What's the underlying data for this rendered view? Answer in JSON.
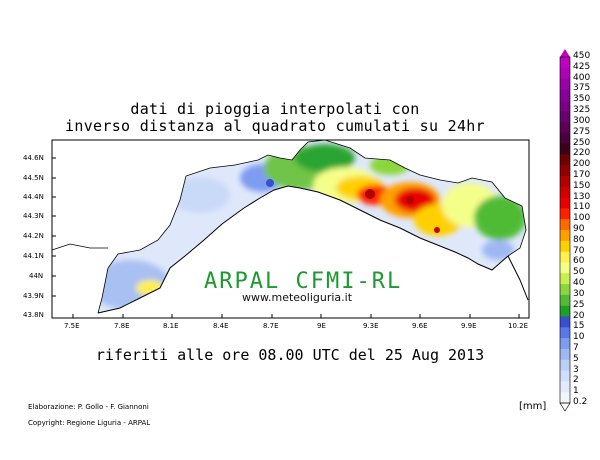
{
  "title_line1": "dati di pioggia interpolati con",
  "title_line2": "inverso distanza al quadrato cumulati su 24hr",
  "subtitle": "riferiti alle ore 08.00 UTC del 25 Aug 2013",
  "watermark": {
    "org": "ARPAL CFMI-RL",
    "site": "www.meteoliguria.it"
  },
  "credits": {
    "line1": "Elaborazione: P. Gollo - F. Giannoni",
    "line2": "Copyright: Regione Liguria - ARPAL"
  },
  "unit": "[mm]",
  "lat_labels": [
    "44.6N",
    "44.5N",
    "44.4N",
    "44.3N",
    "44.2N",
    "44.1N",
    "44N",
    "43.9N",
    "43.8N"
  ],
  "lon_labels": [
    "7.5E",
    "7.8E",
    "8.1E",
    "8.4E",
    "8.7E",
    "9E",
    "9.3E",
    "9.6E",
    "9.9E",
    "10.2E"
  ],
  "legend": {
    "labels": [
      "450",
      "425",
      "400",
      "375",
      "350",
      "325",
      "300",
      "275",
      "250",
      "220",
      "200",
      "170",
      "150",
      "130",
      "110",
      "100",
      "90",
      "80",
      "70",
      "60",
      "50",
      "40",
      "30",
      "25",
      "20",
      "15",
      "10",
      "7",
      "5",
      "3",
      "2",
      "1",
      "0.2"
    ],
    "colors": [
      "#c000c0",
      "#b000b8",
      "#9a00a8",
      "#880098",
      "#7a0088",
      "#6a0070",
      "#5a0058",
      "#4a0038",
      "#3e0018",
      "#700000",
      "#900000",
      "#b00000",
      "#d00000",
      "#e80000",
      "#ff2000",
      "#ff6a00",
      "#ffa000",
      "#ffd000",
      "#ffef50",
      "#f4ff8a",
      "#c8ee50",
      "#8cd63e",
      "#50bb34",
      "#1f9e2a",
      "#3a4fd0",
      "#5a78e6",
      "#7e9cf0",
      "#9fb8f4",
      "#bccdf8",
      "#d0defb",
      "#e2ebfd",
      "#f2f6ff",
      "#ffffff"
    ]
  }
}
